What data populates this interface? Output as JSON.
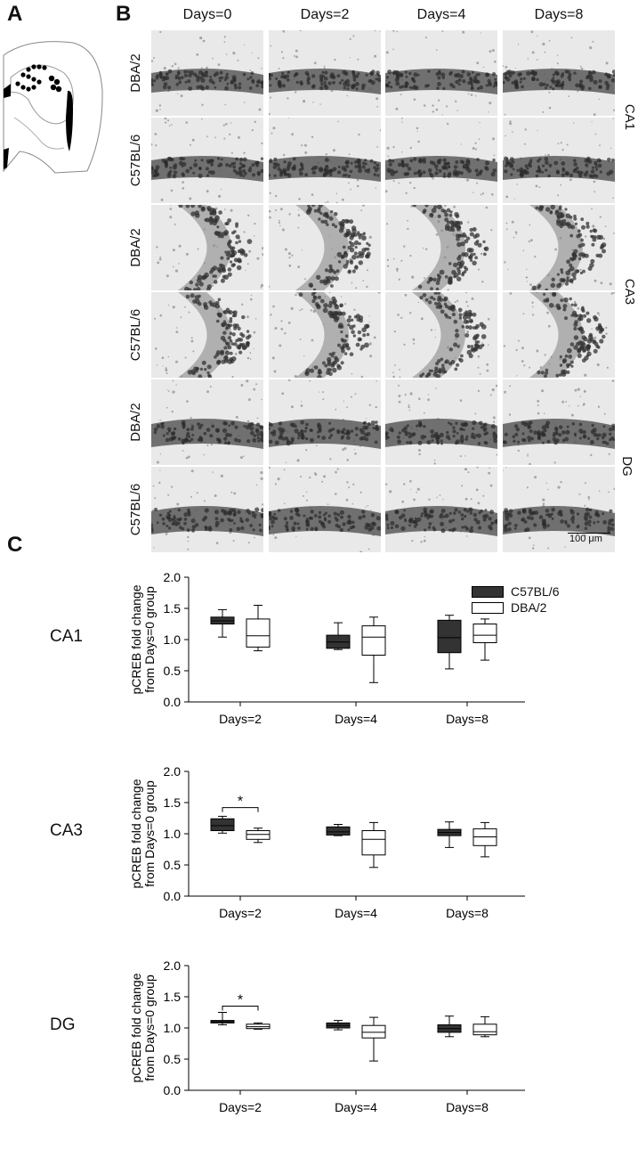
{
  "panels": {
    "a": "A",
    "b": "B",
    "c": "C"
  },
  "micrograph": {
    "columns": [
      "Days=0",
      "Days=2",
      "Days=4",
      "Days=8"
    ],
    "rows": [
      {
        "region": "CA1",
        "strain": "DBA/2",
        "shape": "band"
      },
      {
        "region": "CA1",
        "strain": "C57BL/6",
        "shape": "band"
      },
      {
        "region": "CA3",
        "strain": "DBA/2",
        "shape": "arc"
      },
      {
        "region": "CA3",
        "strain": "C57BL/6",
        "shape": "arc"
      },
      {
        "region": "DG",
        "strain": "DBA/2",
        "shape": "band"
      },
      {
        "region": "DG",
        "strain": "C57BL/6",
        "shape": "band"
      }
    ],
    "regions": [
      "CA1",
      "CA3",
      "DG"
    ],
    "scale_bar": "100 μm"
  },
  "chart_data": [
    {
      "type": "box",
      "region": "CA1",
      "ylabel": "pCREB fold change\nfrom Days=0 group",
      "ylim": [
        0,
        2.0
      ],
      "yticks": [
        "0.0",
        "0.5",
        "1.0",
        "1.5",
        "2.0"
      ],
      "categories": [
        "Days=2",
        "Days=4",
        "Days=8"
      ],
      "series": [
        {
          "name": "C57BL/6",
          "color": "#333333",
          "boxes": [
            {
              "min": 1.04,
              "q1": 1.25,
              "median": 1.3,
              "q3": 1.36,
              "max": 1.48
            },
            {
              "min": 0.84,
              "q1": 0.86,
              "median": 0.96,
              "q3": 1.07,
              "max": 1.27
            },
            {
              "min": 0.53,
              "q1": 0.79,
              "median": 1.03,
              "q3": 1.31,
              "max": 1.39
            }
          ]
        },
        {
          "name": "DBA/2",
          "color": "#ffffff",
          "boxes": [
            {
              "min": 0.82,
              "q1": 0.88,
              "median": 1.06,
              "q3": 1.33,
              "max": 1.55
            },
            {
              "min": 0.31,
              "q1": 0.75,
              "median": 1.04,
              "q3": 1.22,
              "max": 1.36
            },
            {
              "min": 0.67,
              "q1": 0.95,
              "median": 1.07,
              "q3": 1.25,
              "max": 1.33
            }
          ]
        }
      ],
      "significance": []
    },
    {
      "type": "box",
      "region": "CA3",
      "ylabel": "pCREB fold change\nfrom Days=0 group",
      "ylim": [
        0,
        2.0
      ],
      "yticks": [
        "0.0",
        "0.5",
        "1.0",
        "1.5",
        "2.0"
      ],
      "categories": [
        "Days=2",
        "Days=4",
        "Days=8"
      ],
      "series": [
        {
          "name": "C57BL/6",
          "color": "#333333",
          "boxes": [
            {
              "min": 1.01,
              "q1": 1.05,
              "median": 1.13,
              "q3": 1.24,
              "max": 1.28
            },
            {
              "min": 0.97,
              "q1": 0.98,
              "median": 1.03,
              "q3": 1.11,
              "max": 1.15
            },
            {
              "min": 0.78,
              "q1": 0.97,
              "median": 1.02,
              "q3": 1.07,
              "max": 1.19
            }
          ]
        },
        {
          "name": "DBA/2",
          "color": "#ffffff",
          "boxes": [
            {
              "min": 0.86,
              "q1": 0.91,
              "median": 0.99,
              "q3": 1.05,
              "max": 1.09
            },
            {
              "min": 0.46,
              "q1": 0.66,
              "median": 0.91,
              "q3": 1.05,
              "max": 1.18
            },
            {
              "min": 0.63,
              "q1": 0.81,
              "median": 0.95,
              "q3": 1.08,
              "max": 1.18
            }
          ]
        }
      ],
      "significance": [
        {
          "category": "Days=2",
          "label": "*",
          "y": 1.42
        }
      ]
    },
    {
      "type": "box",
      "region": "DG",
      "ylabel": "pCREB fold change\nfrom Days=0 group",
      "ylim": [
        0,
        2.0
      ],
      "yticks": [
        "0.0",
        "0.5",
        "1.0",
        "1.5",
        "2.0"
      ],
      "categories": [
        "Days=2",
        "Days=4",
        "Days=8"
      ],
      "series": [
        {
          "name": "C57BL/6",
          "color": "#333333",
          "boxes": [
            {
              "min": 1.05,
              "q1": 1.08,
              "median": 1.1,
              "q3": 1.12,
              "max": 1.25
            },
            {
              "min": 0.97,
              "q1": 1.0,
              "median": 1.04,
              "q3": 1.08,
              "max": 1.12
            },
            {
              "min": 0.86,
              "q1": 0.93,
              "median": 0.99,
              "q3": 1.05,
              "max": 1.19
            }
          ]
        },
        {
          "name": "DBA/2",
          "color": "#ffffff",
          "boxes": [
            {
              "min": 0.98,
              "q1": 0.99,
              "median": 1.02,
              "q3": 1.06,
              "max": 1.08
            },
            {
              "min": 0.47,
              "q1": 0.84,
              "median": 0.93,
              "q3": 1.04,
              "max": 1.17
            },
            {
              "min": 0.86,
              "q1": 0.89,
              "median": 0.94,
              "q3": 1.06,
              "max": 1.18
            }
          ]
        }
      ],
      "significance": [
        {
          "category": "Days=2",
          "label": "*",
          "y": 1.35
        }
      ]
    }
  ],
  "legend": [
    {
      "label": "C57BL/6",
      "color": "#333333"
    },
    {
      "label": "DBA/2",
      "color": "#ffffff"
    }
  ]
}
